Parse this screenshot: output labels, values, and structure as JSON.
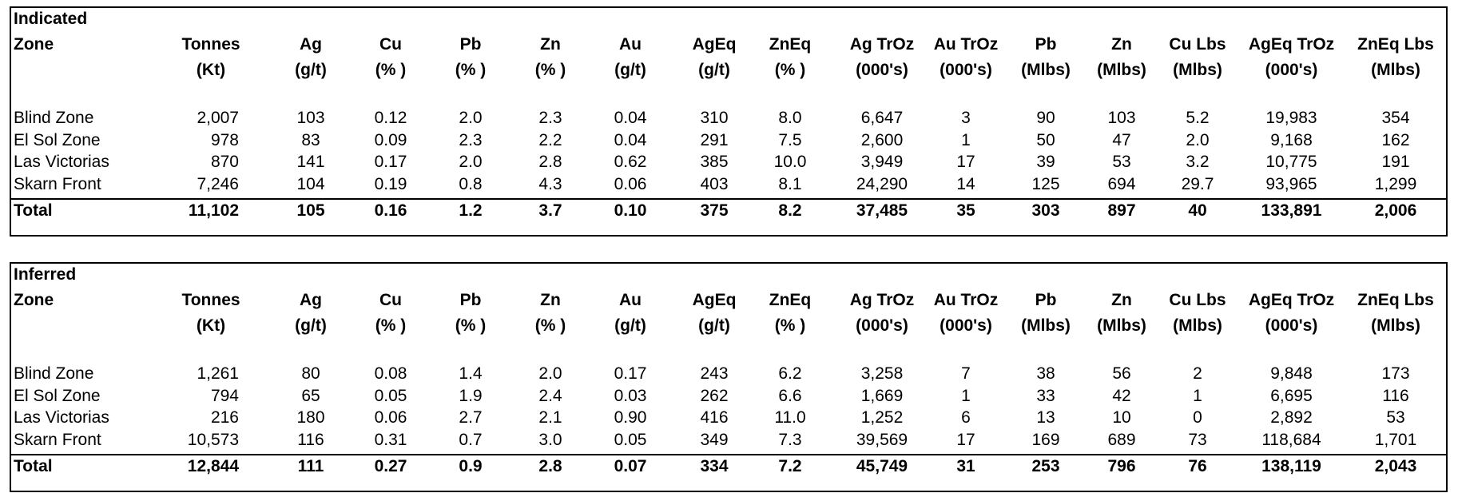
{
  "headers": [
    {
      "line1": "Zone",
      "line2": ""
    },
    {
      "line1": "Tonnes",
      "line2": "(Kt)"
    },
    {
      "line1": "Ag",
      "line2": "(g/t)"
    },
    {
      "line1": "Cu",
      "line2": "(% )"
    },
    {
      "line1": "Pb",
      "line2": "(% )"
    },
    {
      "line1": "Zn",
      "line2": "(% )"
    },
    {
      "line1": "Au",
      "line2": "(g/t)"
    },
    {
      "line1": "AgEq",
      "line2": "(g/t)"
    },
    {
      "line1": "ZnEq",
      "line2": "(% )"
    },
    {
      "line1": "Ag TrOz",
      "line2": "(000's)"
    },
    {
      "line1": "Au TrOz",
      "line2": "(000's)"
    },
    {
      "line1": "Pb",
      "line2": "(Mlbs)"
    },
    {
      "line1": "Zn",
      "line2": "(Mlbs)"
    },
    {
      "line1": "Cu Lbs",
      "line2": "(Mlbs)"
    },
    {
      "line1": "AgEq TrOz",
      "line2": "(000's)"
    },
    {
      "line1": "ZnEq Lbs",
      "line2": "(Mlbs)"
    }
  ],
  "indicated": {
    "category": "Indicated",
    "rows": [
      [
        "Blind Zone",
        "2,007",
        "103",
        "0.12",
        "2.0",
        "2.3",
        "0.04",
        "310",
        "8.0",
        "6,647",
        "3",
        "90",
        "103",
        "5.2",
        "19,983",
        "354"
      ],
      [
        "El Sol Zone",
        "978",
        "83",
        "0.09",
        "2.3",
        "2.2",
        "0.04",
        "291",
        "7.5",
        "2,600",
        "1",
        "50",
        "47",
        "2.0",
        "9,168",
        "162"
      ],
      [
        "Las Victorias",
        "870",
        "141",
        "0.17",
        "2.0",
        "2.8",
        "0.62",
        "385",
        "10.0",
        "3,949",
        "17",
        "39",
        "53",
        "3.2",
        "10,775",
        "191"
      ],
      [
        "Skarn Front",
        "7,246",
        "104",
        "0.19",
        "0.8",
        "4.3",
        "0.06",
        "403",
        "8.1",
        "24,290",
        "14",
        "125",
        "694",
        "29.7",
        "93,965",
        "1,299"
      ]
    ],
    "total": [
      "Total",
      "11,102",
      "105",
      "0.16",
      "1.2",
      "3.7",
      "0.10",
      "375",
      "8.2",
      "37,485",
      "35",
      "303",
      "897",
      "40",
      "133,891",
      "2,006"
    ]
  },
  "inferred": {
    "category": "Inferred",
    "rows": [
      [
        "Blind Zone",
        "1,261",
        "80",
        "0.08",
        "1.4",
        "2.0",
        "0.17",
        "243",
        "6.2",
        "3,258",
        "7",
        "38",
        "56",
        "2",
        "9,848",
        "173"
      ],
      [
        "El Sol Zone",
        "794",
        "65",
        "0.05",
        "1.9",
        "2.4",
        "0.03",
        "262",
        "6.6",
        "1,669",
        "1",
        "33",
        "42",
        "1",
        "6,695",
        "116"
      ],
      [
        "Las Victorias",
        "216",
        "180",
        "0.06",
        "2.7",
        "2.1",
        "0.90",
        "416",
        "11.0",
        "1,252",
        "6",
        "13",
        "10",
        "0",
        "2,892",
        "53"
      ],
      [
        "Skarn Front",
        "10,573",
        "116",
        "0.31",
        "0.7",
        "3.0",
        "0.05",
        "349",
        "7.3",
        "39,569",
        "17",
        "169",
        "689",
        "73",
        "118,684",
        "1,701"
      ]
    ],
    "total": [
      "Total",
      "12,844",
      "111",
      "0.27",
      "0.9",
      "2.8",
      "0.07",
      "334",
      "7.2",
      "45,749",
      "31",
      "253",
      "796",
      "76",
      "138,119",
      "2,043"
    ]
  }
}
